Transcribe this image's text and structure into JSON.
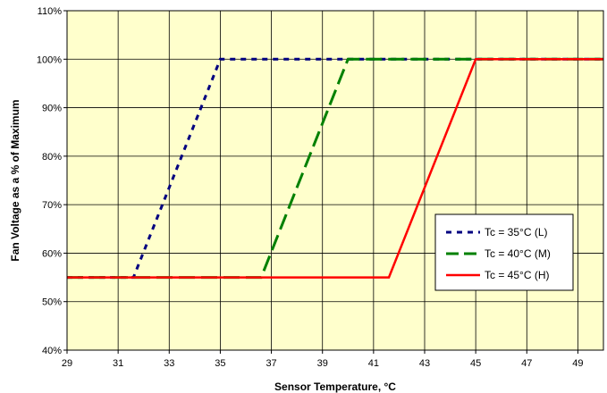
{
  "chart_data": {
    "type": "line",
    "title": "",
    "xlabel": "Sensor Temperature, °C",
    "ylabel": "Fan Voltage as a % of Maximum",
    "xlim": [
      29,
      50
    ],
    "ylim": [
      40,
      110
    ],
    "x_ticks": [
      29,
      31,
      33,
      35,
      37,
      39,
      41,
      43,
      45,
      47,
      49
    ],
    "y_ticks": [
      40,
      50,
      60,
      70,
      80,
      90,
      100,
      110
    ],
    "y_tick_labels": [
      "40%",
      "50%",
      "60%",
      "70%",
      "80%",
      "90%",
      "100%",
      "110%"
    ],
    "grid": true,
    "legend_position": "center-right",
    "plot_background": "#ffffcc",
    "series": [
      {
        "name": "Tc = 35°C (L)",
        "color": "#000080",
        "style": "dotted",
        "x": [
          29,
          31.6,
          35,
          50
        ],
        "y": [
          55,
          55,
          100,
          100
        ]
      },
      {
        "name": "Tc = 40°C (M)",
        "color": "#008000",
        "style": "dashed",
        "x": [
          29,
          36.6,
          40,
          50
        ],
        "y": [
          55,
          55,
          100,
          100
        ]
      },
      {
        "name": "Tc = 45°C (H)",
        "color": "#ff0000",
        "style": "solid",
        "x": [
          29,
          41.6,
          45,
          50
        ],
        "y": [
          55,
          55,
          100,
          100
        ]
      }
    ]
  }
}
